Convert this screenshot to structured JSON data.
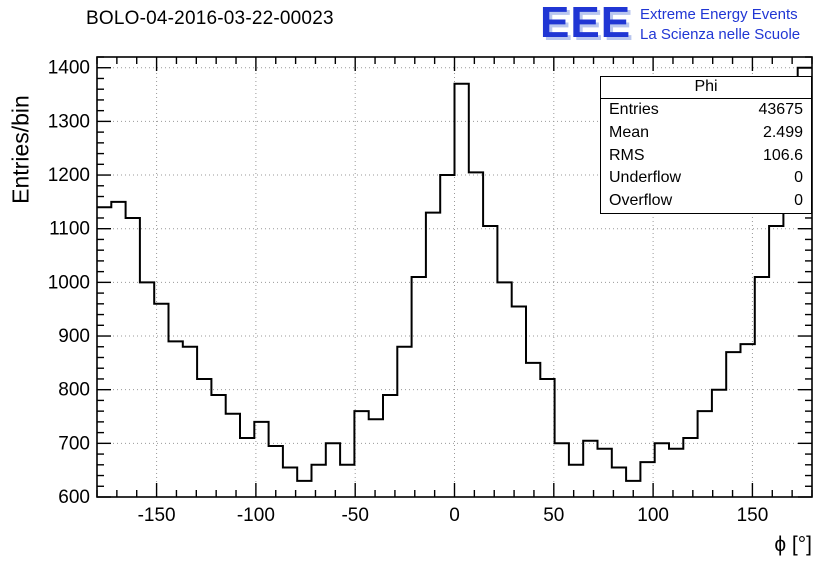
{
  "title": "BOLO-04-2016-03-22-00023",
  "logo": {
    "text": "EEE",
    "line1": "Extreme Energy Events",
    "line2": "La Scienza nelle Scuole",
    "color": "#2036d4"
  },
  "stats": {
    "title": "Phi",
    "rows": [
      {
        "label": "Entries",
        "value": "43675"
      },
      {
        "label": "Mean",
        "value": "2.499"
      },
      {
        "label": "RMS",
        "value": "106.6"
      },
      {
        "label": "Underflow",
        "value": "0"
      },
      {
        "label": "Overflow",
        "value": "0"
      }
    ]
  },
  "chart_data": {
    "type": "bar",
    "subtype": "step-histogram",
    "title": "BOLO-04-2016-03-22-00023",
    "xlabel": "ϕ [°]",
    "ylabel": "Entries/bin",
    "xlim": [
      -180,
      180
    ],
    "ylim": [
      600,
      1420
    ],
    "bin_start": -180,
    "bin_width": 7.2,
    "values": [
      1140,
      1150,
      1120,
      1000,
      960,
      890,
      880,
      820,
      790,
      755,
      710,
      740,
      695,
      655,
      630,
      660,
      700,
      660,
      760,
      745,
      790,
      880,
      1010,
      1130,
      1200,
      1370,
      1205,
      1105,
      1000,
      955,
      850,
      820,
      700,
      660,
      705,
      690,
      655,
      630,
      665,
      700,
      690,
      710,
      760,
      800,
      870,
      885,
      1010,
      1105,
      1150,
      1400
    ],
    "xticks": [
      -150,
      -100,
      -50,
      0,
      50,
      100,
      150
    ],
    "yticks": [
      600,
      700,
      800,
      900,
      1000,
      1100,
      1200,
      1300,
      1400
    ],
    "x_minor_step": 10,
    "y_minor_step": 20,
    "grid": true,
    "grid_color": "#999999",
    "line_color": "#000000"
  }
}
